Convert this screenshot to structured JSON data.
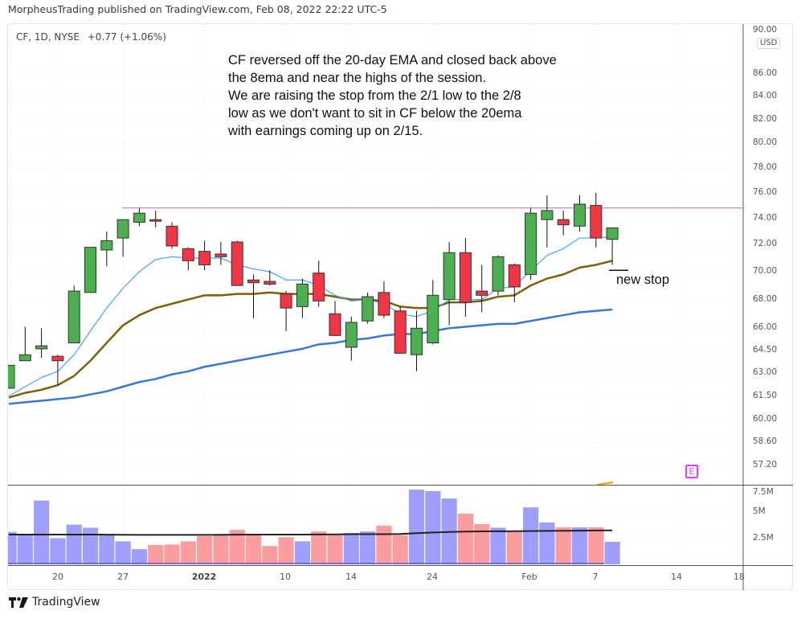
{
  "header": {
    "published": "MorpheusTrading published on TradingView.com, Feb 08, 2022 22:22 UTC-5"
  },
  "legend": {
    "symbol": "CF, 1D, NYSE",
    "change": "+0.77 (+1.06%)"
  },
  "price_axis": {
    "currency": "USD",
    "ticks": [
      "90.00",
      "86.00",
      "84.00",
      "82.00",
      "80.00",
      "78.00",
      "76.00",
      "74.00",
      "72.00",
      "70.00",
      "68.00",
      "66.00",
      "64.50",
      "63.00",
      "61.50",
      "60.00",
      "58.60",
      "57.20"
    ],
    "scale": "log"
  },
  "volume_axis": {
    "ticks": [
      "7.5M",
      "5M",
      "2.5M"
    ]
  },
  "time_axis": {
    "ticks": [
      "20",
      "27",
      "2022",
      "10",
      "14",
      "24",
      "Feb",
      "7",
      "14",
      "18"
    ]
  },
  "annotation": {
    "lines": [
      "CF reversed off the 20-day EMA and closed back above",
      "the 8ema and near the highs of the session.",
      "We are raising the stop from the 2/1 low to the 2/8",
      "low as we don't want to sit in CF below the 20ema",
      "with earnings coming up on 2/15."
    ]
  },
  "stop": {
    "label": "new stop",
    "level": 70.1
  },
  "earnings": {
    "label": "E",
    "date": "2022-02-15"
  },
  "footer": {
    "brand": "TradingView"
  },
  "colors": {
    "up": "#4caf50",
    "down": "#f23645",
    "vol_up": "#9e9efc",
    "vol_down": "#fb9d9f",
    "ema8": "#42a5f5",
    "ema20": "#7e6008",
    "ema50": "#3a78d8",
    "resistance": "#c763e0",
    "vol_ma": "#222222"
  },
  "chart_data": {
    "type": "candlestick",
    "title": "",
    "ylim": [
      56.5,
      90
    ],
    "yscale": "log",
    "grid": true,
    "dates": [
      "2021-12-15",
      "2021-12-16",
      "2021-12-17",
      "2021-12-20",
      "2021-12-21",
      "2021-12-22",
      "2021-12-23",
      "2021-12-27",
      "2021-12-28",
      "2021-12-29",
      "2021-12-30",
      "2021-12-31",
      "2022-01-03",
      "2022-01-04",
      "2022-01-05",
      "2022-01-06",
      "2022-01-07",
      "2022-01-10",
      "2022-01-11",
      "2022-01-12",
      "2022-01-13",
      "2022-01-14",
      "2022-01-18",
      "2022-01-19",
      "2022-01-20",
      "2022-01-21",
      "2022-01-24",
      "2022-01-25",
      "2022-01-26",
      "2022-01-27",
      "2022-01-28",
      "2022-01-31",
      "2022-02-01",
      "2022-02-02",
      "2022-02-03",
      "2022-02-04",
      "2022-02-07",
      "2022-02-08"
    ],
    "open": [
      62.0,
      63.8,
      64.6,
      64.1,
      65.0,
      68.5,
      71.6,
      72.5,
      73.7,
      73.9,
      73.4,
      71.7,
      71.5,
      71.3,
      72.2,
      69.4,
      69.3,
      68.4,
      67.5,
      69.9,
      67.0,
      64.7,
      66.5,
      68.5,
      67.2,
      64.2,
      65.0,
      68.0,
      71.4,
      68.6,
      68.6,
      70.5,
      69.8,
      73.9,
      73.9,
      73.4,
      75.0,
      72.4
    ],
    "high": [
      63.5,
      66.1,
      66.0,
      64.2,
      69.0,
      71.8,
      73.0,
      73.9,
      74.8,
      74.6,
      73.7,
      71.8,
      72.3,
      72.2,
      72.3,
      69.8,
      70.1,
      68.6,
      69.5,
      70.8,
      67.9,
      66.8,
      68.5,
      69.3,
      67.5,
      67.2,
      69.4,
      72.2,
      72.5,
      70.5,
      71.2,
      70.6,
      74.8,
      75.8,
      74.6,
      75.8,
      76.0,
      73.3
    ],
    "low": [
      62.0,
      63.8,
      64.0,
      62.2,
      65.0,
      68.5,
      70.4,
      71.1,
      73.4,
      73.3,
      71.7,
      70.1,
      70.1,
      70.5,
      69.0,
      66.7,
      69.0,
      65.8,
      66.7,
      67.5,
      65.5,
      63.8,
      66.3,
      66.7,
      64.3,
      63.1,
      64.9,
      66.2,
      66.8,
      67.1,
      68.3,
      67.8,
      69.4,
      71.8,
      72.7,
      73.0,
      71.8,
      70.5
    ],
    "close": [
      63.5,
      64.2,
      64.8,
      63.8,
      68.6,
      71.8,
      72.3,
      73.9,
      74.4,
      73.8,
      71.9,
      70.8,
      70.5,
      71.1,
      69.0,
      69.2,
      69.1,
      67.4,
      69.1,
      67.9,
      65.5,
      66.4,
      68.2,
      66.9,
      64.3,
      66.0,
      68.3,
      71.4,
      67.8,
      68.3,
      71.1,
      68.9,
      74.4,
      74.6,
      73.5,
      75.1,
      72.5,
      73.27
    ],
    "ema8": [
      61.5,
      62.1,
      62.7,
      63.1,
      64.2,
      65.8,
      67.4,
      68.8,
      70.0,
      70.9,
      71.1,
      71.0,
      71.0,
      71.0,
      70.5,
      70.2,
      70.0,
      69.4,
      69.4,
      69.0,
      68.3,
      67.9,
      68.0,
      67.7,
      67.0,
      66.8,
      67.2,
      68.0,
      68.0,
      68.0,
      68.8,
      68.9,
      70.1,
      71.2,
      71.7,
      72.5,
      72.5,
      72.6
    ],
    "ema20": [
      61.4,
      61.7,
      61.9,
      62.2,
      62.8,
      63.8,
      65.0,
      66.2,
      66.9,
      67.4,
      67.7,
      68.0,
      68.3,
      68.3,
      68.4,
      68.4,
      68.5,
      68.4,
      68.4,
      68.4,
      68.2,
      68.0,
      68.0,
      67.9,
      67.5,
      67.4,
      67.4,
      67.8,
      67.8,
      67.9,
      68.2,
      68.3,
      69.0,
      69.5,
      69.8,
      70.3,
      70.5,
      70.8
    ],
    "ema50": [
      61.0,
      61.1,
      61.2,
      61.3,
      61.4,
      61.6,
      61.8,
      62.1,
      62.4,
      62.6,
      62.9,
      63.1,
      63.4,
      63.6,
      63.8,
      64.0,
      64.2,
      64.4,
      64.6,
      64.9,
      65.0,
      65.2,
      65.3,
      65.5,
      65.6,
      65.6,
      65.8,
      66.0,
      66.1,
      66.2,
      66.3,
      66.3,
      66.5,
      66.7,
      66.9,
      67.1,
      67.2,
      67.3
    ],
    "resistance": 74.8,
    "volume_millions": [
      3.1,
      2.9,
      6.1,
      2.5,
      3.8,
      3.5,
      2.85,
      2.2,
      1.45,
      1.85,
      1.9,
      2.2,
      2.7,
      2.8,
      3.3,
      2.9,
      1.75,
      2.6,
      2.2,
      3.15,
      2.9,
      3.0,
      3.15,
      3.7,
      2.8,
      7.15,
      7.0,
      6.3,
      4.85,
      3.85,
      3.5,
      3.1,
      5.45,
      4.0,
      3.55,
      3.55,
      3.55,
      2.15
    ],
    "volume_up": [
      1,
      1,
      1,
      1,
      1,
      1,
      1,
      1,
      1,
      0,
      0,
      0,
      0,
      0,
      0,
      0,
      0,
      0,
      1,
      0,
      0,
      1,
      1,
      0,
      0,
      1,
      1,
      1,
      0,
      0,
      1,
      0,
      1,
      1,
      0,
      1,
      0,
      1
    ],
    "volume_ma_millions": [
      2.85,
      2.85,
      2.85,
      2.85,
      2.85,
      2.85,
      2.84,
      2.83,
      2.82,
      2.82,
      2.82,
      2.82,
      2.82,
      2.83,
      2.84,
      2.85,
      2.85,
      2.85,
      2.85,
      2.86,
      2.87,
      2.88,
      2.88,
      2.88,
      2.9,
      2.98,
      3.05,
      3.1,
      3.13,
      3.15,
      3.16,
      3.17,
      3.18,
      3.2,
      3.21,
      3.22,
      3.24,
      3.25
    ],
    "vylim": [
      0,
      7.7
    ]
  }
}
